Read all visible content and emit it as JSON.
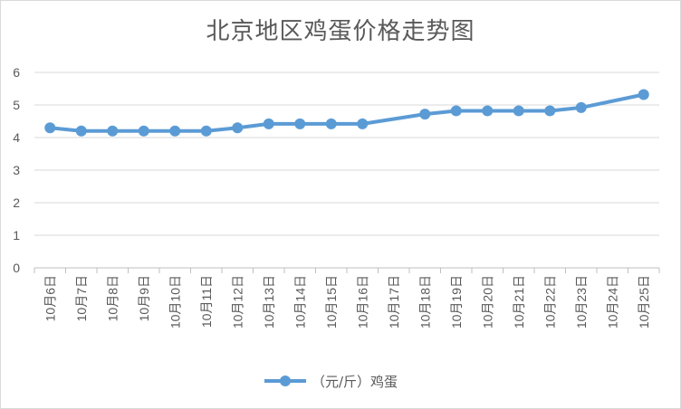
{
  "chart_data": {
    "type": "line",
    "title": "北京地区鸡蛋价格走势图",
    "categories": [
      "10月6日",
      "10月7日",
      "10月8日",
      "10月9日",
      "10月10日",
      "10月11日",
      "10月12日",
      "10月13日",
      "10月14日",
      "10月15日",
      "10月16日",
      "10月17日",
      "10月18日",
      "10月19日",
      "10月20日",
      "10月21日",
      "10月22日",
      "10月23日",
      "10月24日",
      "10月25日"
    ],
    "series": [
      {
        "name": "（元/斤）鸡蛋",
        "color": "#5b9bd5",
        "values": [
          4.3,
          4.2,
          4.2,
          4.2,
          4.2,
          4.2,
          4.3,
          4.42,
          4.42,
          4.42,
          4.42,
          null,
          4.72,
          4.82,
          4.82,
          4.82,
          4.82,
          4.92,
          null,
          5.32
        ]
      }
    ],
    "ylim": [
      0,
      6
    ],
    "yticks": [
      0,
      1,
      2,
      3,
      4,
      5,
      6
    ],
    "grid": true,
    "legend_position": "bottom",
    "xlabel": "",
    "ylabel": ""
  }
}
